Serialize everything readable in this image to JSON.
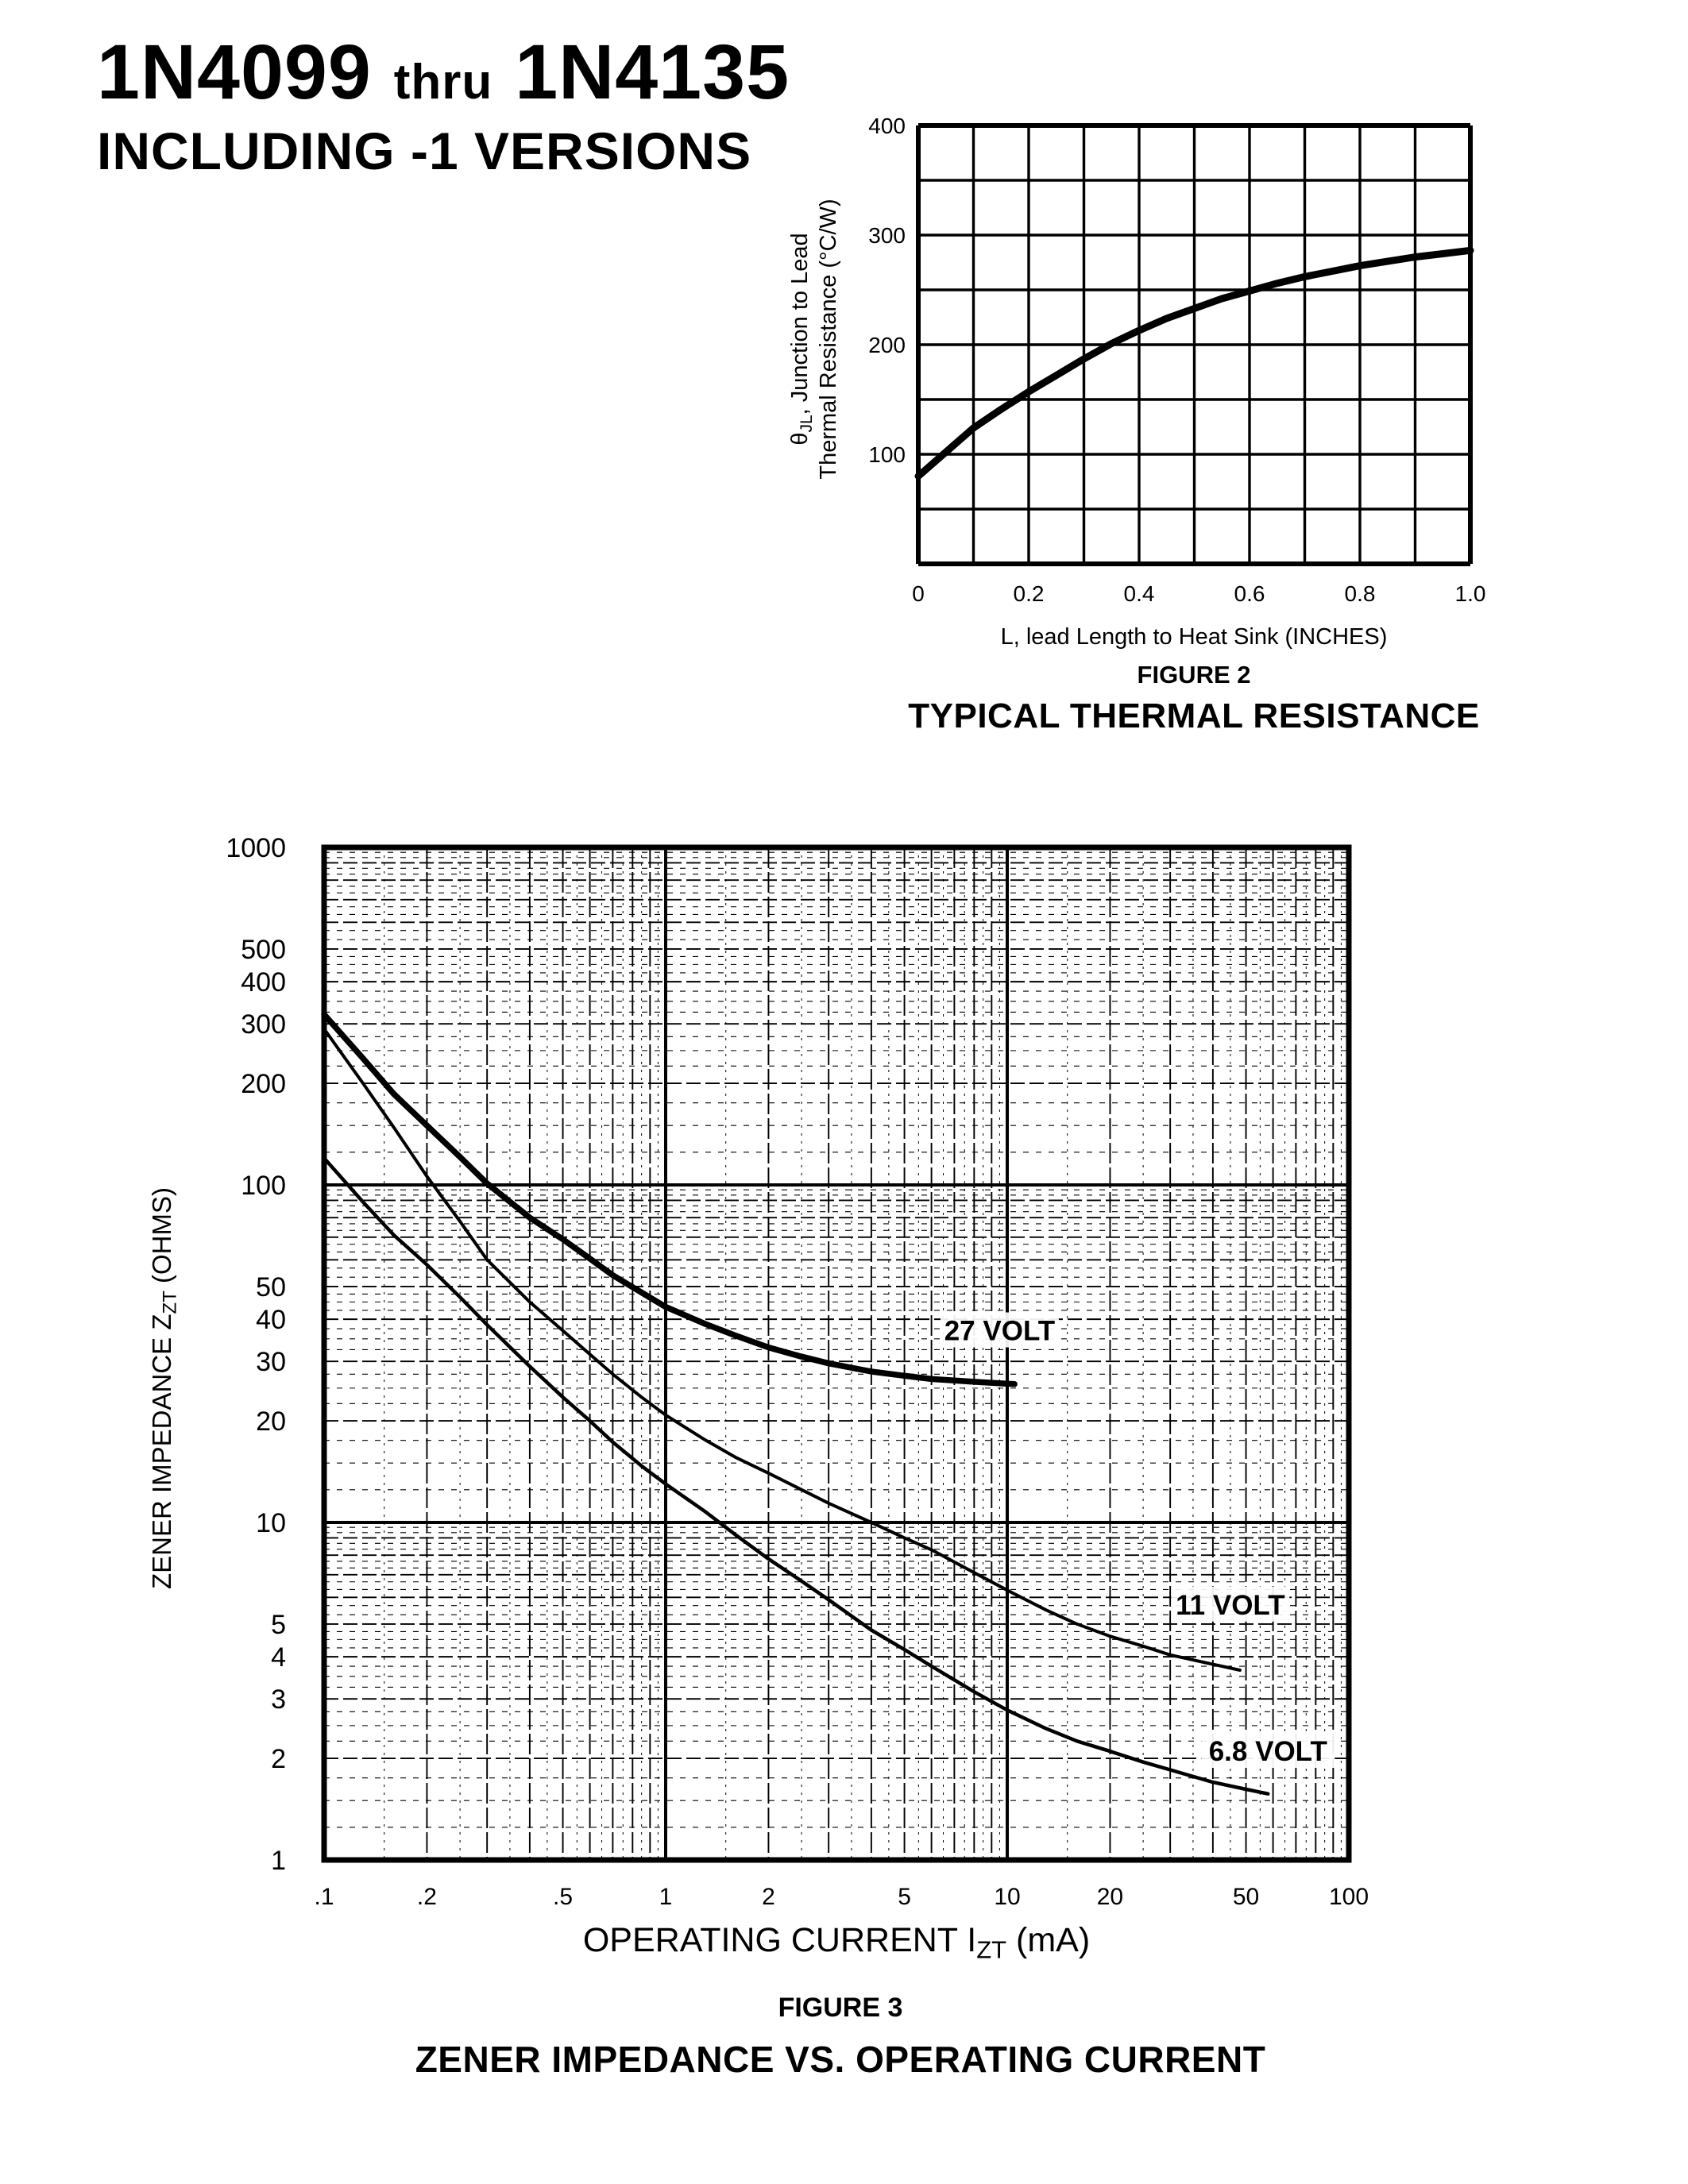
{
  "header": {
    "part_number_start": "1N4099",
    "thru": "thru",
    "part_number_end": "1N4135",
    "subtitle": "INCLUDING -1 VERSIONS"
  },
  "chart_data": [
    {
      "id": "fig2",
      "type": "line",
      "title": "FIGURE 2",
      "subtitle": "TYPICAL THERMAL RESISTANCE",
      "xlabel": "L, lead Length to Heat Sink (INCHES)",
      "ylabel": {
        "pre": "θ",
        "sub": "JL",
        "post": ", Junction to Lead",
        "line2": "Thermal Resistance (°C/W)"
      },
      "xlim": [
        0,
        1.0
      ],
      "ylim": [
        0,
        400
      ],
      "x_minor_step": 0.1,
      "y_minor_step": 50,
      "grid": "on",
      "legend": "none",
      "x_ticks": [
        0,
        0.2,
        0.4,
        0.6,
        0.8,
        1.0
      ],
      "x_tick_labels": [
        "0",
        "0.2",
        "0.4",
        "0.6",
        "0.8",
        "1.0"
      ],
      "y_ticks": [
        100,
        200,
        300,
        400
      ],
      "y_tick_labels": [
        "100",
        "200",
        "300",
        "400"
      ],
      "series": [
        {
          "name": "junction-to-lead thermal resistance",
          "stroke_width": 9,
          "points": [
            [
              0,
              80
            ],
            [
              0.05,
              102
            ],
            [
              0.1,
              124
            ],
            [
              0.15,
              141
            ],
            [
              0.2,
              157
            ],
            [
              0.25,
              172
            ],
            [
              0.3,
              187
            ],
            [
              0.35,
              201
            ],
            [
              0.4,
              213
            ],
            [
              0.45,
              224
            ],
            [
              0.5,
              233
            ],
            [
              0.55,
              242
            ],
            [
              0.6,
              249
            ],
            [
              0.65,
              256
            ],
            [
              0.7,
              262
            ],
            [
              0.75,
              267
            ],
            [
              0.8,
              272
            ],
            [
              0.85,
              276
            ],
            [
              0.9,
              280
            ],
            [
              0.95,
              283
            ],
            [
              1.0,
              286
            ]
          ]
        }
      ]
    },
    {
      "id": "fig3",
      "type": "line-loglog",
      "title": "FIGURE 3",
      "subtitle": "ZENER IMPEDANCE VS. OPERATING CURRENT",
      "xlabel": {
        "pre": "OPERATING CURRENT I",
        "sub": "ZT",
        "post": " (mA)"
      },
      "ylabel": {
        "pre": "ZENER IMPEDANCE Z",
        "sub": "ZT",
        "post": " (OHMS)"
      },
      "xlim": [
        0.1,
        100
      ],
      "ylim": [
        1,
        1000
      ],
      "grid": "on",
      "legend": "inline-labels",
      "x_tick_values": [
        0.1,
        0.2,
        0.5,
        1,
        2,
        5,
        10,
        20,
        50,
        100
      ],
      "x_tick_labels": [
        ".1",
        ".2",
        ".5",
        "1",
        "2",
        "5",
        "10",
        "20",
        "50",
        "100"
      ],
      "y_tick_values": [
        1000,
        500,
        400,
        300,
        200,
        100,
        50,
        40,
        30,
        20,
        10,
        5,
        4,
        3,
        2,
        1
      ],
      "y_tick_labels": [
        "1000",
        "500",
        "400",
        "300",
        "200",
        "100",
        "50",
        "40",
        "30",
        "20",
        "10",
        "5",
        "4",
        "3",
        "2",
        "1"
      ],
      "series": [
        {
          "name": "27 VOLT",
          "label": "27 VOLT",
          "label_at": [
            9.5,
            37
          ],
          "stroke_width": 7.5,
          "points": [
            [
              0.1,
              320
            ],
            [
              0.13,
              237
            ],
            [
              0.16,
              186
            ],
            [
              0.2,
              150
            ],
            [
              0.25,
              121
            ],
            [
              0.3,
              101
            ],
            [
              0.4,
              80
            ],
            [
              0.5,
              69
            ],
            [
              0.6,
              60.5
            ],
            [
              0.7,
              54
            ],
            [
              0.85,
              48
            ],
            [
              1,
              43.5
            ],
            [
              1.3,
              38.8
            ],
            [
              1.6,
              35.8
            ],
            [
              2,
              33
            ],
            [
              2.5,
              31
            ],
            [
              3,
              29.6
            ],
            [
              4,
              28
            ],
            [
              5,
              27.2
            ],
            [
              6,
              26.6
            ],
            [
              8,
              26.1
            ],
            [
              10.5,
              25.7
            ]
          ]
        },
        {
          "name": "11 VOLT",
          "label": "11 VOLT",
          "label_at": [
            45,
            5.7
          ],
          "stroke_width": 4,
          "points": [
            [
              0.1,
              290
            ],
            [
              0.13,
              200
            ],
            [
              0.16,
              148
            ],
            [
              0.2,
              106
            ],
            [
              0.25,
              78
            ],
            [
              0.3,
              60
            ],
            [
              0.4,
              45
            ],
            [
              0.5,
              37
            ],
            [
              0.6,
              31.5
            ],
            [
              0.7,
              27.5
            ],
            [
              0.85,
              23.5
            ],
            [
              1,
              20.8
            ],
            [
              1.3,
              17.6
            ],
            [
              1.6,
              15.6
            ],
            [
              2,
              14
            ],
            [
              2.5,
              12.5
            ],
            [
              3,
              11.4
            ],
            [
              4,
              10
            ],
            [
              5,
              9
            ],
            [
              6,
              8.3
            ],
            [
              8,
              7.1
            ],
            [
              10,
              6.3
            ],
            [
              13,
              5.5
            ],
            [
              16,
              5
            ],
            [
              20,
              4.6
            ],
            [
              25,
              4.3
            ],
            [
              30,
              4.05
            ],
            [
              40,
              3.8
            ],
            [
              48,
              3.65
            ]
          ]
        },
        {
          "name": "6.8 VOLT",
          "label": "6.8 VOLT",
          "label_at": [
            58,
            2.1
          ],
          "stroke_width": 4.5,
          "points": [
            [
              0.1,
              120
            ],
            [
              0.13,
              89
            ],
            [
              0.16,
              71
            ],
            [
              0.2,
              58
            ],
            [
              0.25,
              46.5
            ],
            [
              0.3,
              38.5
            ],
            [
              0.4,
              29
            ],
            [
              0.5,
              23.5
            ],
            [
              0.6,
              20
            ],
            [
              0.7,
              17.3
            ],
            [
              0.85,
              14.7
            ],
            [
              1,
              13
            ],
            [
              1.3,
              10.8
            ],
            [
              1.6,
              9.2
            ],
            [
              2,
              7.8
            ],
            [
              2.5,
              6.7
            ],
            [
              3,
              5.9
            ],
            [
              4,
              4.8
            ],
            [
              5,
              4.2
            ],
            [
              6,
              3.75
            ],
            [
              8,
              3.15
            ],
            [
              10,
              2.78
            ],
            [
              13,
              2.45
            ],
            [
              16,
              2.25
            ],
            [
              20,
              2.1
            ],
            [
              25,
              1.95
            ],
            [
              30,
              1.85
            ],
            [
              40,
              1.7
            ],
            [
              50,
              1.62
            ],
            [
              58,
              1.57
            ]
          ]
        }
      ],
      "colors": {
        "ink": "#000000",
        "paper": "#ffffff"
      }
    }
  ]
}
